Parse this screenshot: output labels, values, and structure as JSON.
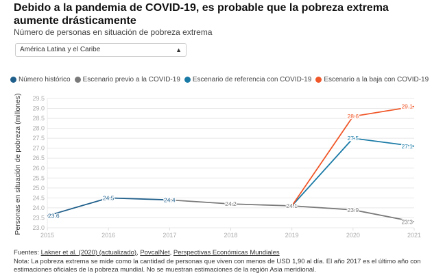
{
  "title": "Debido a la pandemia de COVID-19, es probable que la pobreza extrema aumente drásticamente",
  "subtitle": "Número de personas en situación de pobreza extrema",
  "region_select": {
    "value": "América Latina y el Caribe",
    "icon": "sort-arrows-icon"
  },
  "footer": {
    "sources_label": "Fuentes: ",
    "sources": [
      "Lakner et al. (2020) (actualizado)",
      "PovcalNet",
      "Perspectivas Económicas Mundiales"
    ],
    "note": "Nota: La pobreza extrema se mide como la cantidad de personas que viven con menos de USD 1,90 al día. El año 2017 es el último año con estimaciones oficiales de la pobreza mundial. No se muestran estimaciones de la región Asia meridional."
  },
  "chart_data": {
    "type": "line",
    "title": "Debido a la pandemia de COVID-19, es probable que la pobreza extrema aumente drásticamente",
    "xlabel": "",
    "ylabel": "Personas en situación de pobreza (millones)",
    "ylim": [
      23.0,
      29.5
    ],
    "yticks": [
      "23.0",
      "23.5",
      "24.0",
      "24.5",
      "25.0",
      "25.5",
      "26.0",
      "26.5",
      "27.0",
      "27.5",
      "28.0",
      "28.5",
      "29.0",
      "29.5"
    ],
    "xticks": [
      "2015",
      "2016",
      "2017",
      "2018",
      "2019",
      "2020",
      "2021"
    ],
    "grid": true,
    "legend_position": "top-left",
    "series": [
      {
        "name": "Número histórico",
        "color": "#1f5f8b",
        "points": [
          {
            "x": 2015,
            "y": 23.6,
            "label": "23.6"
          },
          {
            "x": 2016,
            "y": 24.5,
            "label": "24.5"
          },
          {
            "x": 2017,
            "y": 24.4,
            "label": "24.4"
          }
        ]
      },
      {
        "name": "Escenario previo a la COVID-19",
        "color": "#7a7a7a",
        "points": [
          {
            "x": 2017,
            "y": 24.4,
            "label": ""
          },
          {
            "x": 2018,
            "y": 24.2,
            "label": "24.2"
          },
          {
            "x": 2019,
            "y": 24.1,
            "label": "24.1"
          },
          {
            "x": 2020,
            "y": 23.9,
            "label": "23.9"
          },
          {
            "x": 2021,
            "y": 23.3,
            "label": "23.3"
          }
        ]
      },
      {
        "name": "Escenario de referencia con COVID-19",
        "color": "#1a7aa6",
        "points": [
          {
            "x": 2019,
            "y": 24.1,
            "label": ""
          },
          {
            "x": 2020,
            "y": 27.5,
            "label": "27.5"
          },
          {
            "x": 2021,
            "y": 27.1,
            "label": "27.1"
          }
        ]
      },
      {
        "name": "Escenario a la baja con COVID-19",
        "color": "#f0582a",
        "points": [
          {
            "x": 2019,
            "y": 24.1,
            "label": ""
          },
          {
            "x": 2020,
            "y": 28.6,
            "label": "28.6"
          },
          {
            "x": 2021,
            "y": 29.1,
            "label": "29.1"
          }
        ]
      }
    ]
  }
}
